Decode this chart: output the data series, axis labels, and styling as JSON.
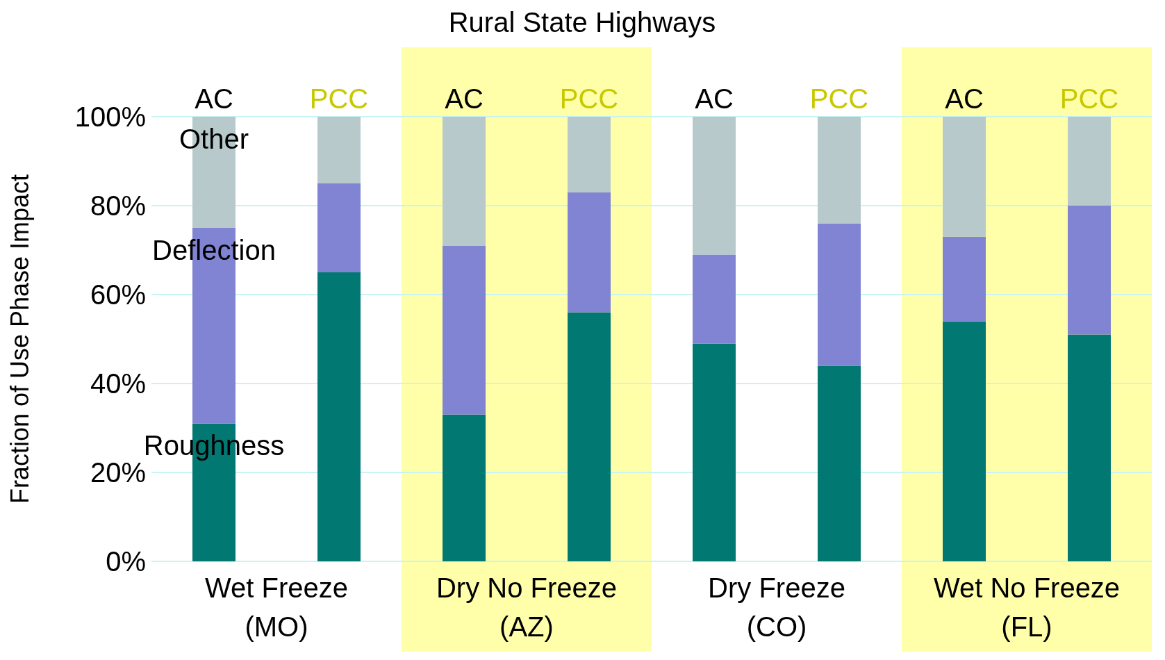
{
  "chart_data": {
    "type": "bar",
    "stacked": true,
    "title": "Rural State Highways",
    "ylabel": "Fraction of Use Phase Impact",
    "categories": [
      "AC",
      "PCC",
      "AC",
      "PCC",
      "AC",
      "PCC",
      "AC",
      "PCC"
    ],
    "series": [
      {
        "name": "Roughness",
        "color": "#027873",
        "values": [
          31,
          65,
          33,
          56,
          49,
          44,
          54,
          51
        ]
      },
      {
        "name": "Deflection",
        "color": "#8084d2",
        "values": [
          44,
          20,
          38,
          27,
          20,
          32,
          19,
          29
        ]
      },
      {
        "name": "Other",
        "color": "#b8c9cb",
        "values": [
          25,
          15,
          29,
          17,
          31,
          24,
          27,
          20
        ]
      }
    ],
    "ylim": [
      0,
      100
    ],
    "yticks": [
      {
        "value": 0,
        "label": "0%"
      },
      {
        "value": 20,
        "label": "20%"
      },
      {
        "value": 40,
        "label": "40%"
      },
      {
        "value": 60,
        "label": "60%"
      },
      {
        "value": 80,
        "label": "80%"
      },
      {
        "value": 100,
        "label": "100%"
      }
    ],
    "grid": "y",
    "annotations": [
      "Wet Freeze (MO)",
      "Dry No Freeze (AZ)",
      "Dry Freeze (CO)",
      "Wet No Freeze (FL)"
    ]
  }
}
